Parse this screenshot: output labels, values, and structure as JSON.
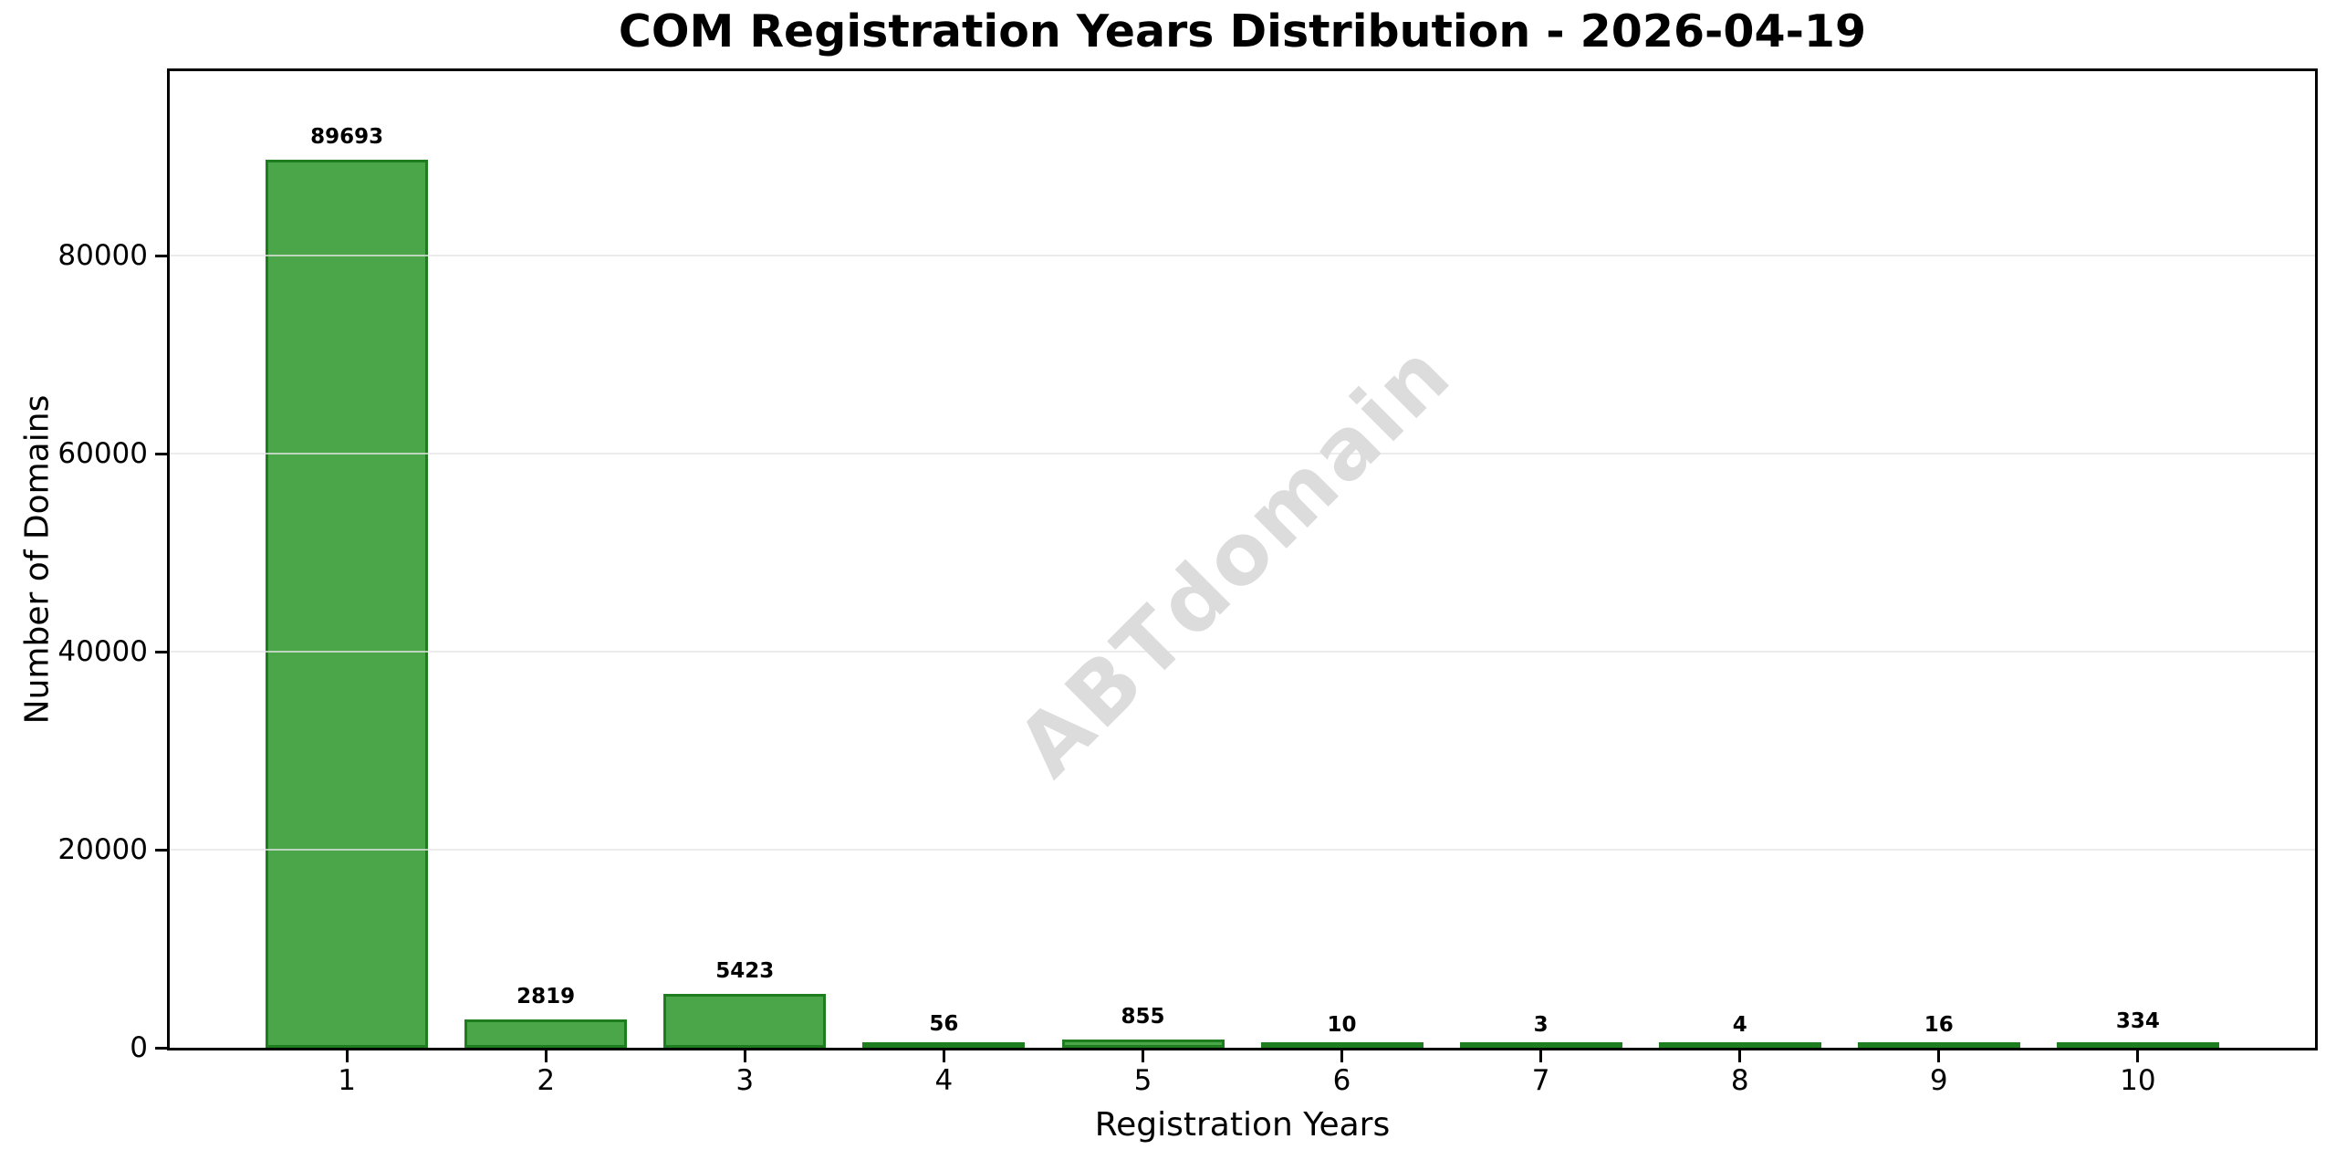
{
  "chart_data": {
    "type": "bar",
    "title": "COM Registration Years Distribution - 2026-04-19",
    "xlabel": "Registration Years",
    "ylabel": "Number of Domains",
    "categories": [
      "1",
      "2",
      "3",
      "4",
      "5",
      "6",
      "7",
      "8",
      "9",
      "10"
    ],
    "values": [
      89693,
      2819,
      5423,
      56,
      855,
      10,
      3,
      4,
      16,
      334
    ],
    "value_labels": [
      "89693",
      "2819",
      "5423",
      "56",
      "855",
      "10",
      "3",
      "4",
      "16",
      "334"
    ],
    "yticks": [
      0,
      20000,
      40000,
      60000,
      80000
    ],
    "ytick_labels": [
      "0",
      "20000",
      "40000",
      "60000",
      "80000"
    ],
    "ylim": [
      0,
      98600
    ],
    "xlim": [
      0.11,
      10.89
    ],
    "bar_width_data_units": 0.815,
    "grid": true,
    "legend_position": "none",
    "watermark": "ABTdomain",
    "colors": {
      "bar_fill": "#4BA64A",
      "bar_edge": "#1E7D1E",
      "grid": "#E6E6E6",
      "grid_over_bars": "rgba(230,230,230,0.75)",
      "axis": "#000000",
      "text": "#000000",
      "watermark": "#DCDCDC",
      "background": "#FFFFFF"
    }
  }
}
